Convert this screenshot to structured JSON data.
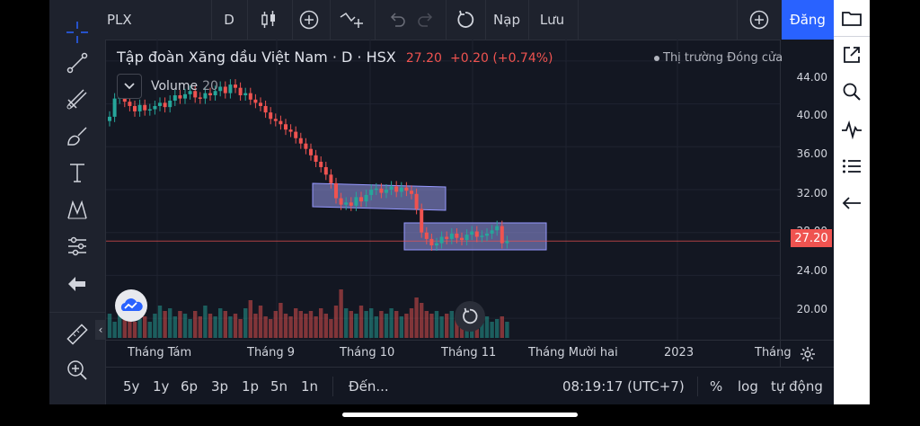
{
  "topbar": {
    "symbol": "PLX",
    "interval": "D",
    "undo_icon": "undo-icon",
    "redo_icon": "redo-icon",
    "reload_icon": "reload-icon",
    "deposit_label": "Nạp",
    "save_label": "Lưu",
    "signin_label": "Đăng"
  },
  "legend": {
    "title": "Tập đoàn Xăng dầu Việt Nam",
    "interval": "D",
    "exchange": "HSX",
    "last": "27.20",
    "change": "+0.20 (+0.74%)",
    "market_status": "Thị trường Đóng cửa",
    "volume_label": "Volume",
    "volume_length": "20"
  },
  "price_axis": {
    "labels": [
      "44.00",
      "40.00",
      "36.00",
      "32.00",
      "28.00",
      "24.00",
      "20.00"
    ],
    "current": "27.20"
  },
  "time_axis": {
    "labels": [
      "Tháng Tám",
      "Tháng 9",
      "Tháng 10",
      "Tháng 11",
      "Tháng Mười hai",
      "2023",
      "Tháng"
    ]
  },
  "bottombar": {
    "ranges": [
      "5y",
      "1y",
      "6p",
      "3p",
      "1p",
      "5n",
      "1n"
    ],
    "goto": "Đến...",
    "time": "08:19:17 (UTC+7)",
    "percent": "%",
    "log": "log",
    "auto": "tự động"
  },
  "colors": {
    "up": "#26a69a",
    "down": "#ef5350",
    "accent": "#2962ff",
    "bg": "#131722"
  },
  "chart_data": {
    "type": "candlestick",
    "ylim": [
      18,
      46
    ],
    "last_price": 27.2,
    "closes": [
      38.8,
      40.5,
      40.6,
      40.2,
      39.8,
      39.3,
      39.9,
      39.4,
      39.5,
      39.8,
      40.1,
      39.7,
      40.3,
      40.8,
      40.5,
      40.9,
      41.2,
      40.6,
      40.5,
      41.0,
      40.8,
      41.2,
      41.6,
      41.0,
      41.8,
      41.5,
      40.8,
      41.0,
      40.4,
      40.1,
      39.8,
      39.2,
      38.6,
      38.4,
      38.1,
      37.6,
      37.4,
      36.8,
      36.3,
      35.8,
      35.2,
      34.6,
      34.1,
      33.4,
      32.6,
      31.2,
      30.6,
      30.8,
      30.5,
      31.3,
      30.9,
      31.5,
      32.0,
      32.1,
      31.7,
      32.0,
      32.3,
      31.8,
      32.2,
      31.9,
      31.6,
      30.2,
      28.0,
      27.4,
      26.8,
      27.0,
      27.6,
      27.4,
      27.9,
      27.5,
      27.3,
      27.8,
      28.1,
      27.6,
      27.7,
      27.9,
      28.2,
      28.6,
      27.0,
      27.2
    ],
    "volumes": [
      0.45,
      0.3,
      0.5,
      0.35,
      0.4,
      0.3,
      0.35,
      0.4,
      0.3,
      0.45,
      0.6,
      0.5,
      0.55,
      0.4,
      0.5,
      0.45,
      0.35,
      0.5,
      0.4,
      0.6,
      0.45,
      0.4,
      0.55,
      0.5,
      0.4,
      0.45,
      0.35,
      0.55,
      0.7,
      0.45,
      0.6,
      0.4,
      0.35,
      0.5,
      0.65,
      0.45,
      0.4,
      0.55,
      0.5,
      0.45,
      0.5,
      0.4,
      0.55,
      0.45,
      0.35,
      0.6,
      0.9,
      0.55,
      0.5,
      0.45,
      0.6,
      0.5,
      0.55,
      0.4,
      0.5,
      0.45,
      0.55,
      0.5,
      0.4,
      0.45,
      0.55,
      0.75,
      0.65,
      0.5,
      0.45,
      0.5,
      0.4,
      0.45,
      0.5,
      0.4,
      0.35,
      0.45,
      0.4,
      0.5,
      0.35,
      0.4,
      0.3,
      0.35,
      0.4,
      0.3
    ]
  }
}
